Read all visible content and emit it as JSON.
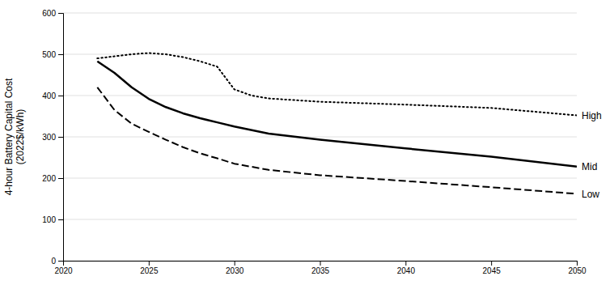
{
  "chart_data": {
    "type": "line",
    "y_label": "4-hour Battery Capital Cost\n(2022$/kWh)",
    "xlim": [
      2020,
      2050
    ],
    "ylim": [
      0,
      600
    ],
    "xticks": [
      2020,
      2025,
      2030,
      2035,
      2040,
      2045,
      2050
    ],
    "yticks": [
      0,
      100,
      200,
      300,
      400,
      500,
      600
    ],
    "grid": true,
    "series": [
      {
        "name": "High",
        "color": "#000000",
        "line_style": "dotted",
        "x": [
          2022,
          2023,
          2024,
          2025,
          2026,
          2027,
          2028,
          2029,
          2030,
          2031,
          2032,
          2035,
          2040,
          2045,
          2050
        ],
        "values": [
          490,
          495,
          500,
          503,
          500,
          493,
          483,
          470,
          415,
          400,
          393,
          385,
          378,
          370,
          352
        ]
      },
      {
        "name": "Mid",
        "color": "#000000",
        "line_style": "solid",
        "x": [
          2022,
          2023,
          2024,
          2025,
          2026,
          2027,
          2028,
          2029,
          2030,
          2032,
          2035,
          2040,
          2045,
          2050
        ],
        "values": [
          483,
          455,
          420,
          392,
          372,
          357,
          345,
          335,
          325,
          308,
          293,
          272,
          252,
          228
        ]
      },
      {
        "name": "Low",
        "color": "#000000",
        "line_style": "dashed",
        "x": [
          2022,
          2023,
          2024,
          2025,
          2026,
          2027,
          2028,
          2029,
          2030,
          2032,
          2035,
          2040,
          2045,
          2050
        ],
        "values": [
          420,
          365,
          332,
          312,
          293,
          275,
          260,
          248,
          235,
          220,
          207,
          193,
          178,
          162
        ]
      }
    ]
  }
}
